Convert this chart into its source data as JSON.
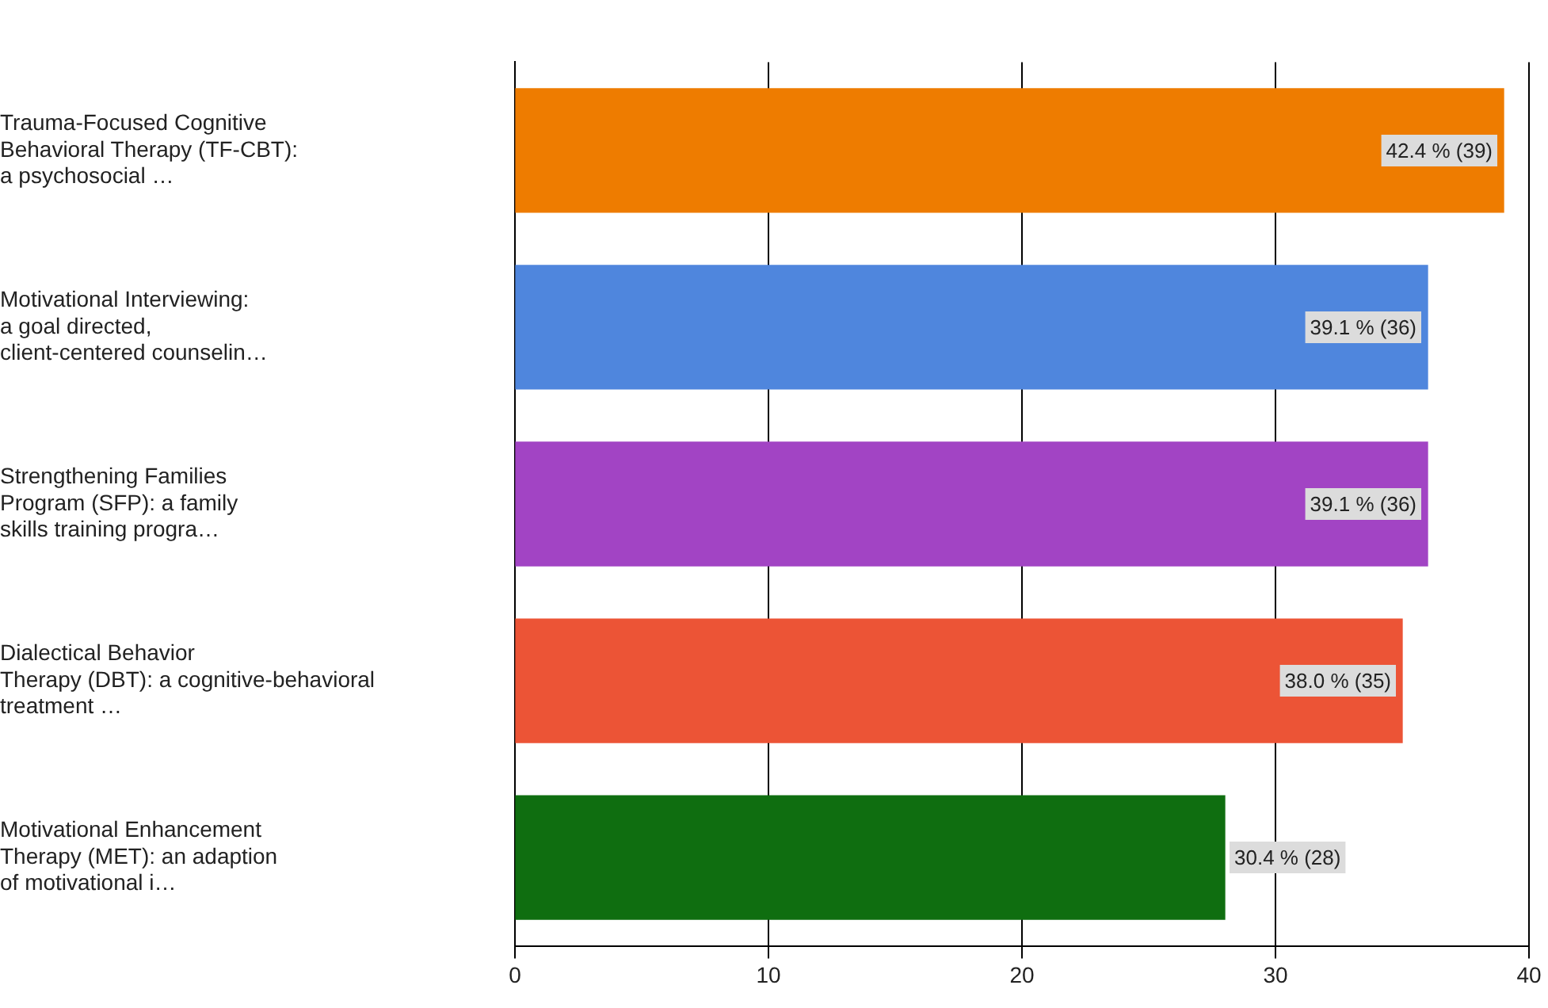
{
  "chart_data": {
    "type": "bar",
    "orientation": "horizontal",
    "categories": [
      "Trauma-Focused Cognitive\nBehavioral Therapy (TF-CBT):\na psychosocial …",
      "Motivational Interviewing:\na goal directed,\nclient-centered counselin…",
      "Strengthening Families\nProgram (SFP): a family\nskills training progra…",
      "Dialectical Behavior\nTherapy (DBT): a cognitive-behavioral\ntreatment …",
      "Motivational Enhancement\nTherapy (MET): an adaption\nof motivational i…"
    ],
    "values": [
      39,
      36,
      36,
      35,
      28
    ],
    "colors": [
      "#ee7c00",
      "#4f86dd",
      "#a244c4",
      "#ec5436",
      "#0f6e10"
    ],
    "value_labels": [
      "42.4 % (39)",
      "39.1 % (36)",
      "39.1 % (36)",
      "38.0 % (35)",
      "30.4 % (28)"
    ],
    "xlim": [
      0,
      40
    ],
    "xticks": [
      0,
      10,
      20,
      30,
      40
    ],
    "grid": "x",
    "legend": false
  }
}
